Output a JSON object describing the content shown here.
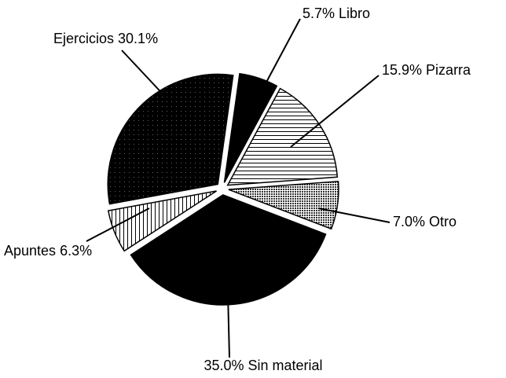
{
  "chart_data": {
    "type": "pie",
    "categories": [
      "Libro",
      "Pizarra",
      "Otro",
      "Sin material",
      "Apuntes",
      "Ejercicios"
    ],
    "values": [
      5.7,
      15.9,
      7.0,
      35.0,
      6.3,
      30.1
    ],
    "value_labels": [
      "5.7%",
      "15.9%",
      "7.0%",
      "35.0%",
      "6.3%",
      "30.1%"
    ]
  }
}
